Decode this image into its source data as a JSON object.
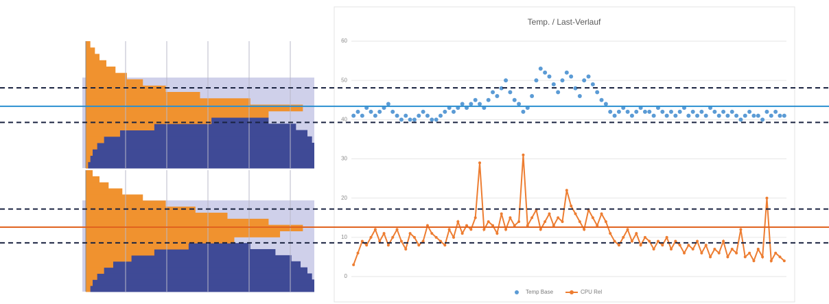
{
  "chart_data": [
    {
      "type": "hbar-hist",
      "xlim": [
        0,
        100
      ],
      "series": [
        {
          "color": "#3f4a96",
          "values": [
            0,
            1,
            2,
            3,
            5,
            7,
            10,
            14,
            19,
            27,
            38,
            62,
            80,
            92,
            97,
            99,
            100,
            100,
            100,
            100
          ]
        },
        {
          "color": "#f0922f",
          "values": [
            2,
            4,
            6,
            9,
            13,
            18,
            25,
            35,
            50,
            72,
            95,
            80,
            55,
            30,
            15,
            8,
            5,
            3,
            2,
            1
          ]
        }
      ]
    },
    {
      "type": "hbar-hist",
      "xlim": [
        0,
        100
      ],
      "series": [
        {
          "color": "#3f4a96",
          "values": [
            0,
            1,
            2,
            3,
            5,
            8,
            12,
            17,
            24,
            33,
            43,
            57,
            72,
            83,
            90,
            94,
            97,
            99,
            100,
            100
          ]
        },
        {
          "color": "#f0922f",
          "values": [
            3,
            6,
            10,
            16,
            25,
            35,
            48,
            62,
            80,
            95,
            85,
            65,
            45,
            30,
            20,
            12,
            8,
            5,
            3,
            2
          ]
        }
      ]
    },
    {
      "type": "scatter-line",
      "title": "Temp. / Last-Verlauf",
      "ylim": [
        0,
        60
      ],
      "yticks": [
        0,
        10,
        20,
        30,
        40,
        50,
        60
      ],
      "grid": true,
      "series": [
        {
          "name": "Temp Base",
          "kind": "scatter",
          "color": "#5b9bd5",
          "values": [
            41,
            42,
            41,
            43,
            42,
            41,
            42,
            43,
            44,
            42,
            41,
            40,
            41,
            40,
            40,
            41,
            42,
            41,
            40,
            40,
            41,
            42,
            43,
            42,
            43,
            44,
            43,
            44,
            45,
            44,
            43,
            45,
            47,
            46,
            48,
            50,
            47,
            45,
            44,
            42,
            43,
            46,
            50,
            53,
            52,
            51,
            49,
            47,
            50,
            52,
            51,
            48,
            46,
            50,
            51,
            49,
            47,
            45,
            44,
            42,
            41,
            42,
            43,
            42,
            41,
            42,
            43,
            42,
            42,
            41,
            43,
            42,
            41,
            42,
            41,
            42,
            43,
            41,
            42,
            41,
            42,
            41,
            43,
            42,
            41,
            42,
            41,
            42,
            41,
            40,
            41,
            42,
            41,
            41,
            40,
            42,
            41,
            42,
            41,
            41
          ]
        },
        {
          "name": "CPU Rel",
          "kind": "line",
          "color": "#ed7d31",
          "values": [
            3,
            6,
            9,
            8,
            10,
            12,
            9,
            11,
            8,
            10,
            12,
            9,
            7,
            11,
            10,
            8,
            9,
            13,
            11,
            10,
            9,
            8,
            12,
            10,
            14,
            11,
            13,
            12,
            15,
            29,
            12,
            14,
            13,
            11,
            16,
            12,
            15,
            13,
            14,
            31,
            13,
            15,
            17,
            12,
            14,
            16,
            13,
            15,
            14,
            22,
            18,
            16,
            14,
            12,
            17,
            15,
            13,
            16,
            14,
            11,
            9,
            8,
            10,
            12,
            9,
            11,
            8,
            10,
            9,
            7,
            9,
            8,
            10,
            7,
            9,
            8,
            6,
            8,
            7,
            9,
            6,
            8,
            5,
            7,
            6,
            9,
            5,
            7,
            6,
            12,
            5,
            6,
            4,
            7,
            5,
            20,
            4,
            6,
            5,
            4
          ]
        }
      ],
      "reference_lines": [
        {
          "value": 48.1,
          "color": "#1a2340",
          "style": "dashed"
        },
        {
          "value": 43.4,
          "color": "#2a8fd0",
          "style": "solid"
        },
        {
          "value": 39.3,
          "color": "#1a2340",
          "style": "dashed"
        },
        {
          "value": 17.2,
          "color": "#1a2340",
          "style": "dashed"
        },
        {
          "value": 12.6,
          "color": "#e0621e",
          "style": "solid"
        },
        {
          "value": 8.6,
          "color": "#1a2340",
          "style": "dashed"
        }
      ]
    }
  ]
}
